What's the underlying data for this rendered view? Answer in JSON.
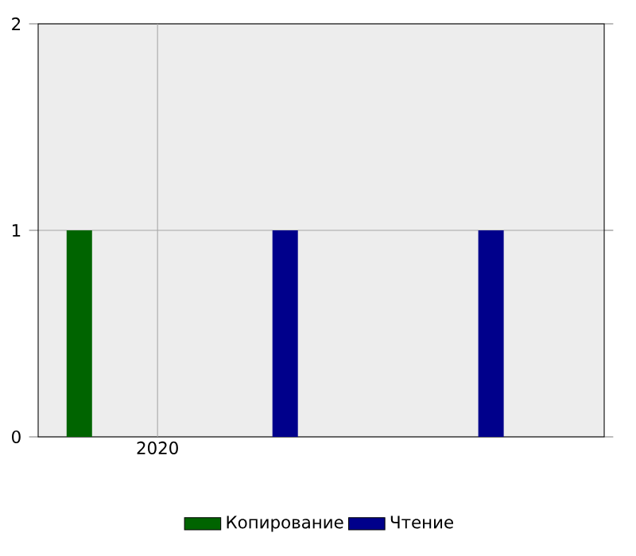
{
  "chart_data": {
    "type": "bar",
    "categories": [
      null,
      null,
      null
    ],
    "series": [
      {
        "name": "Копирование",
        "color": "#006400",
        "values": [
          1,
          null,
          null
        ]
      },
      {
        "name": "Чтение",
        "color": "#00008b",
        "values": [
          null,
          1,
          1
        ]
      }
    ],
    "annotations": [
      "2020"
    ],
    "ylim": [
      0,
      2
    ],
    "yticks": [
      0,
      1,
      2
    ],
    "grid": true,
    "legend": "bottom"
  }
}
